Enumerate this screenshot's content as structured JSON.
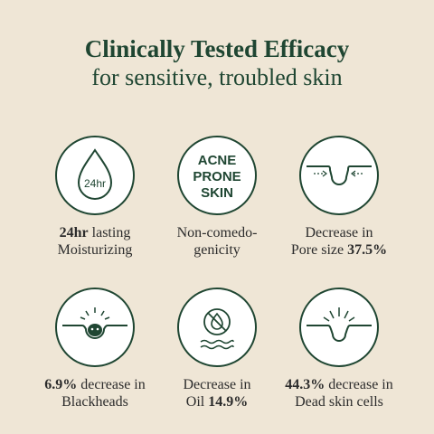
{
  "header": {
    "title": "Clinically Tested Efficacy",
    "subtitle": "for sensitive, troubled skin"
  },
  "items": [
    {
      "icon": "water-drop-24hr-icon",
      "icon_text": "24hr",
      "line1_bold": "24hr",
      "line1": " lasting",
      "line2": "Moisturizing",
      "line2_bold": ""
    },
    {
      "icon": "acne-prone-skin-icon",
      "icon_text": [
        "ACNE",
        "PRONE",
        "SKIN"
      ],
      "line1_bold": "",
      "line1": "Non-comedo-",
      "line2": "genicity",
      "line2_bold": ""
    },
    {
      "icon": "pore-size-icon",
      "line1_bold": "",
      "line1": "Decrease in",
      "line2": "Pore size ",
      "line2_bold": "37.5%"
    },
    {
      "icon": "blackhead-icon",
      "line1_bold": "6.9%",
      "line1": " decrease in",
      "line2": "Blackheads",
      "line2_bold": ""
    },
    {
      "icon": "oil-free-icon",
      "line1_bold": "",
      "line1": "Decrease in",
      "line2": "Oil ",
      "line2_bold": "14.9%"
    },
    {
      "icon": "dead-skin-cells-icon",
      "line1_bold": "44.3%",
      "line1": " decrease in",
      "line2": "Dead skin cells",
      "line2_bold": ""
    }
  ],
  "colors": {
    "background": "#efe6d6",
    "accent": "#1f4632",
    "circle": "#ffffff"
  }
}
